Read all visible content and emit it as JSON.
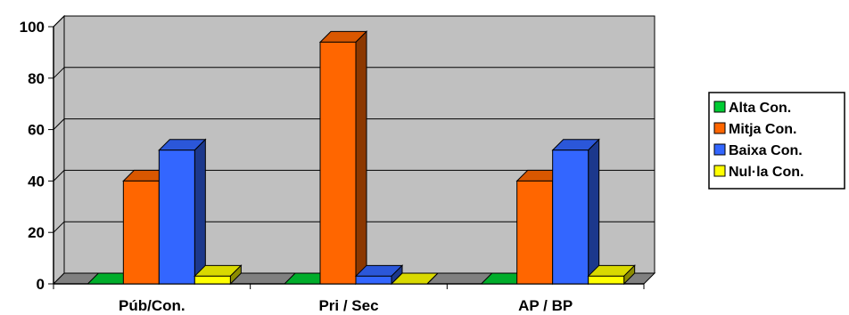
{
  "chart_data": {
    "type": "bar",
    "style": "3d-clustered-column",
    "categories": [
      "Púb/Con.",
      "Pri / Sec",
      "AP / BP"
    ],
    "series": [
      {
        "name": "Alta Con.",
        "color": "#00cc33",
        "values": [
          0,
          0,
          0
        ]
      },
      {
        "name": "Mitja Con.",
        "color": "#ff6600",
        "values": [
          40,
          94,
          40
        ]
      },
      {
        "name": "Baixa Con.",
        "color": "#3366ff",
        "values": [
          52,
          3,
          52
        ]
      },
      {
        "name": "Nul·la Con.",
        "color": "#ffff00",
        "values": [
          3,
          0,
          3
        ]
      }
    ],
    "y_ticks": [
      "0",
      "20",
      "40",
      "60",
      "80",
      "100"
    ],
    "ylim": [
      0,
      100
    ],
    "grid": true,
    "legend_position": "right",
    "wall_color": "#c0c0c0",
    "floor_color": "#808080"
  }
}
